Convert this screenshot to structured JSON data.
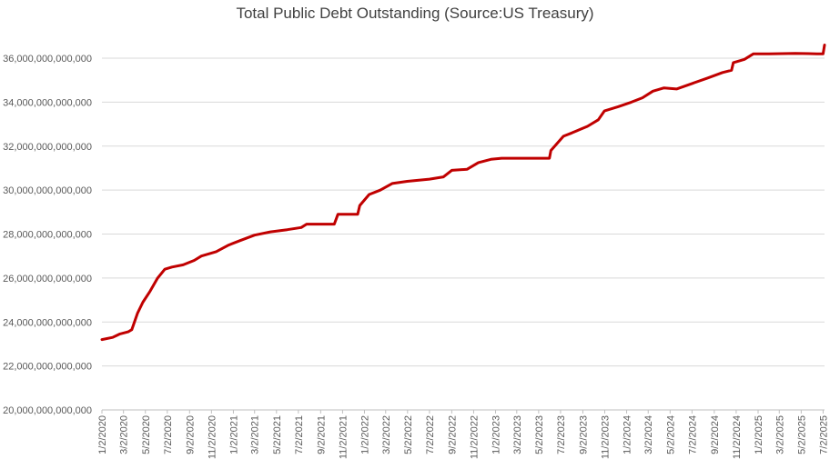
{
  "chart_data": {
    "type": "line",
    "title": "Total Public Debt Outstanding (Source:US Treasury)",
    "xlabel": "",
    "ylabel": "",
    "ylim": [
      20000000000000,
      36000000000000
    ],
    "grid": true,
    "legend": "none",
    "line_color": "#c00000",
    "y_ticks": [
      {
        "value": 20000000000000,
        "label": "20,000,000,000,000"
      },
      {
        "value": 22000000000000,
        "label": "22,000,000,000,000"
      },
      {
        "value": 24000000000000,
        "label": "24,000,000,000,000"
      },
      {
        "value": 26000000000000,
        "label": "26,000,000,000,000"
      },
      {
        "value": 28000000000000,
        "label": "28,000,000,000,000"
      },
      {
        "value": 30000000000000,
        "label": "30,000,000,000,000"
      },
      {
        "value": 32000000000000,
        "label": "32,000,000,000,000"
      },
      {
        "value": 34000000000000,
        "label": "34,000,000,000,000"
      },
      {
        "value": 36000000000000,
        "label": "36,000,000,000,000"
      }
    ],
    "x_ticks": [
      "1/2/2020",
      "3/2/2020",
      "5/2/2020",
      "7/2/2020",
      "9/2/2020",
      "11/2/2020",
      "1/2/2021",
      "3/2/2021",
      "5/2/2021",
      "7/2/2021",
      "9/2/2021",
      "11/2/2021",
      "1/2/2022",
      "3/2/2022",
      "5/2/2022",
      "7/2/2022",
      "9/2/2022",
      "11/2/2022",
      "1/2/2023",
      "3/2/2023",
      "5/2/2023",
      "7/2/2023",
      "9/2/2023",
      "11/2/2023",
      "1/2/2024",
      "3/2/2024",
      "5/2/2024",
      "7/2/2024",
      "9/2/2024",
      "11/2/2024",
      "1/2/2025",
      "3/2/2025",
      "5/2/2025",
      "7/2/2025"
    ],
    "series": [
      {
        "values": [
          {
            "x": "1/2/2020",
            "y": 23200000000000
          },
          {
            "x": "2/1/2020",
            "y": 23300000000000
          },
          {
            "x": "2/20/2020",
            "y": 23450000000000
          },
          {
            "x": "3/15/2020",
            "y": 23550000000000
          },
          {
            "x": "3/25/2020",
            "y": 23650000000000
          },
          {
            "x": "4/10/2020",
            "y": 24400000000000
          },
          {
            "x": "4/25/2020",
            "y": 24900000000000
          },
          {
            "x": "5/15/2020",
            "y": 25400000000000
          },
          {
            "x": "6/5/2020",
            "y": 26000000000000
          },
          {
            "x": "6/25/2020",
            "y": 26400000000000
          },
          {
            "x": "7/15/2020",
            "y": 26500000000000
          },
          {
            "x": "8/15/2020",
            "y": 26600000000000
          },
          {
            "x": "9/15/2020",
            "y": 26800000000000
          },
          {
            "x": "10/5/2020",
            "y": 27000000000000
          },
          {
            "x": "11/15/2020",
            "y": 27200000000000
          },
          {
            "x": "12/20/2020",
            "y": 27500000000000
          },
          {
            "x": "1/20/2021",
            "y": 27700000000000
          },
          {
            "x": "3/2/2021",
            "y": 27950000000000
          },
          {
            "x": "4/15/2021",
            "y": 28100000000000
          },
          {
            "x": "6/1/2021",
            "y": 28200000000000
          },
          {
            "x": "7/10/2021",
            "y": 28300000000000
          },
          {
            "x": "7/25/2021",
            "y": 28450000000000
          },
          {
            "x": "8/1/2021",
            "y": 28450000000000
          },
          {
            "x": "10/10/2021",
            "y": 28450000000000
          },
          {
            "x": "10/20/2021",
            "y": 28900000000000
          },
          {
            "x": "12/14/2021",
            "y": 28900000000000
          },
          {
            "x": "12/20/2021",
            "y": 29300000000000
          },
          {
            "x": "1/15/2022",
            "y": 29800000000000
          },
          {
            "x": "2/15/2022",
            "y": 30000000000000
          },
          {
            "x": "3/20/2022",
            "y": 30300000000000
          },
          {
            "x": "5/1/2022",
            "y": 30400000000000
          },
          {
            "x": "7/2/2022",
            "y": 30500000000000
          },
          {
            "x": "8/10/2022",
            "y": 30600000000000
          },
          {
            "x": "9/2/2022",
            "y": 30900000000000
          },
          {
            "x": "10/15/2022",
            "y": 30950000000000
          },
          {
            "x": "11/15/2022",
            "y": 31250000000000
          },
          {
            "x": "12/20/2022",
            "y": 31400000000000
          },
          {
            "x": "1/19/2023",
            "y": 31450000000000
          },
          {
            "x": "6/1/2023",
            "y": 31450000000000
          },
          {
            "x": "6/5/2023",
            "y": 31800000000000
          },
          {
            "x": "7/10/2023",
            "y": 32450000000000
          },
          {
            "x": "8/2/2023",
            "y": 32600000000000
          },
          {
            "x": "9/15/2023",
            "y": 32900000000000
          },
          {
            "x": "10/15/2023",
            "y": 33200000000000
          },
          {
            "x": "11/1/2023",
            "y": 33600000000000
          },
          {
            "x": "12/10/2023",
            "y": 33800000000000
          },
          {
            "x": "1/15/2024",
            "y": 34000000000000
          },
          {
            "x": "2/15/2024",
            "y": 34200000000000
          },
          {
            "x": "3/15/2024",
            "y": 34500000000000
          },
          {
            "x": "4/15/2024",
            "y": 34650000000000
          },
          {
            "x": "5/20/2024",
            "y": 34600000000000
          },
          {
            "x": "7/2/2024",
            "y": 34850000000000
          },
          {
            "x": "8/15/2024",
            "y": 35100000000000
          },
          {
            "x": "9/25/2024",
            "y": 35350000000000
          },
          {
            "x": "10/20/2024",
            "y": 35450000000000
          },
          {
            "x": "10/25/2024",
            "y": 35800000000000
          },
          {
            "x": "11/25/2024",
            "y": 35950000000000
          },
          {
            "x": "12/20/2024",
            "y": 36200000000000
          },
          {
            "x": "2/1/2025",
            "y": 36200000000000
          },
          {
            "x": "4/15/2025",
            "y": 36220000000000
          },
          {
            "x": "6/15/2025",
            "y": 36200000000000
          },
          {
            "x": "7/2/2025",
            "y": 36200000000000
          },
          {
            "x": "7/6/2025",
            "y": 36600000000000
          }
        ]
      }
    ]
  }
}
